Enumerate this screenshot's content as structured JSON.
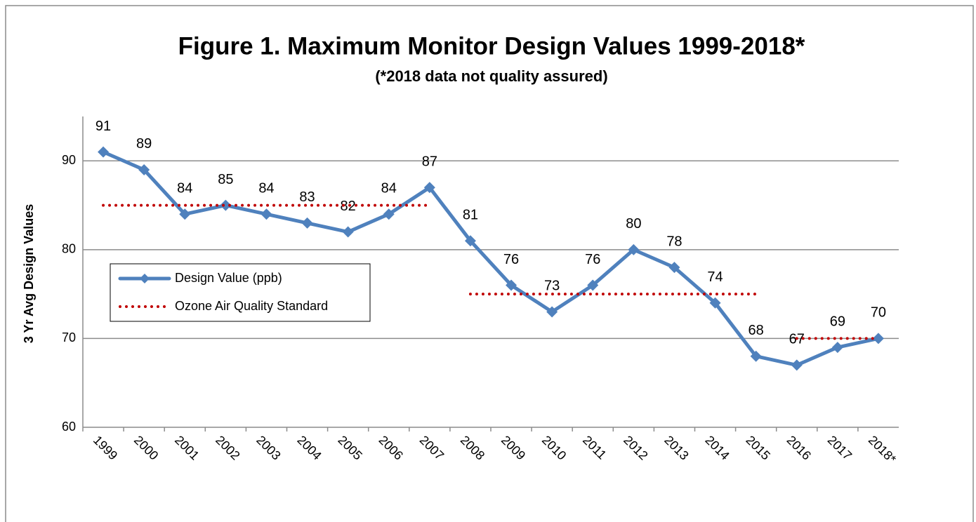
{
  "chart_data": {
    "type": "line",
    "title": "Figure 1. Maximum Monitor Design Values 1999-2018*",
    "subtitle": "(*2018 data not quality assured)",
    "y_label": "3 Yr Avg Design Values",
    "categories": [
      "1999",
      "2000",
      "2001",
      "2002",
      "2003",
      "2004",
      "2005",
      "2006",
      "2007",
      "2008",
      "2009",
      "2010",
      "2011",
      "2012",
      "2013",
      "2014",
      "2015",
      "2016",
      "2017",
      "2018*"
    ],
    "series": [
      {
        "name": "Design Value (ppb)",
        "color": "#4f81bd",
        "marker": "diamond",
        "values": [
          91,
          89,
          84,
          85,
          84,
          83,
          82,
          84,
          87,
          81,
          76,
          73,
          76,
          80,
          78,
          74,
          68,
          67,
          69,
          70
        ],
        "data_labels": true
      },
      {
        "name": "Ozone Air Quality Standard",
        "color": "#c00000",
        "dash": "dotted",
        "values": [
          85,
          85,
          85,
          85,
          85,
          85,
          85,
          85,
          85,
          null,
          null,
          null,
          null,
          null,
          null,
          null,
          null,
          null,
          null,
          null
        ]
      },
      {
        "name": "Ozone Air Quality Standard",
        "color": "#c00000",
        "dash": "dotted",
        "legend": false,
        "values": [
          null,
          null,
          null,
          null,
          null,
          null,
          null,
          null,
          null,
          75,
          75,
          75,
          75,
          75,
          75,
          75,
          75,
          null,
          null,
          null
        ]
      },
      {
        "name": "Ozone Air Quality Standard",
        "color": "#c00000",
        "dash": "dotted",
        "legend": false,
        "values": [
          null,
          null,
          null,
          null,
          null,
          null,
          null,
          null,
          null,
          null,
          null,
          null,
          null,
          null,
          null,
          null,
          null,
          70,
          70,
          70
        ]
      }
    ],
    "ylim": [
      60,
      95
    ],
    "yticks": [
      60,
      70,
      80,
      90
    ],
    "grid": true
  }
}
